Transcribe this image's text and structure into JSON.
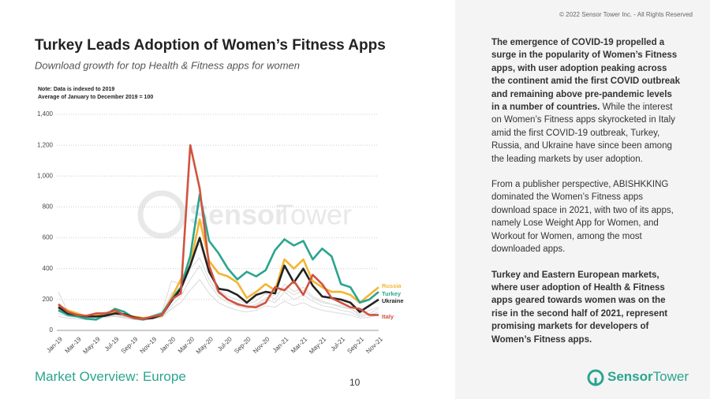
{
  "copyright": "© 2022 Sensor Tower Inc. - All Rights Reserved",
  "footer": "Market Overview: Europe",
  "page_number": "10",
  "logo": [
    "Sensor",
    "Tower"
  ],
  "paragraphs": [
    [
      {
        "text": "The emergence of COVID-19 propelled a surge in the popularity of Women’s Fitness apps, with user adoption peaking across the continent amid the first COVID outbreak and remaining above pre-pandemic levels in a number of countries.",
        "bold": true
      },
      {
        "text": " While the interest on Women’s Fitness apps skyrocketed in Italy amid the first COVID-19 outbreak, Turkey, Russia, and Ukraine have since been among the leading markets by user adoption.",
        "bold": false
      }
    ],
    [
      {
        "text": "From a publisher perspective, ABISHKKING dominated the Women’s Fitness apps download space in 2021, with two of its apps, namely Lose Weight App for Women, and Workout for Women, among the most downloaded apps.",
        "bold": false
      }
    ],
    [
      {
        "text": "Turkey and Eastern European markets, where user adoption of Health & Fitness apps geared towards women was on the rise in the second half of 2021, represent promising markets for developers of Women’s Fitness apps.",
        "bold": true
      }
    ]
  ],
  "chart_data": {
    "type": "line",
    "title": "Turkey Leads Adoption of Women’s Fitness Apps",
    "subtitle": "Download growth for top Health & Fitness apps for women",
    "notes": [
      "Note: Data is indexed to 2019",
      "Average of January to December 2019 = 100"
    ],
    "categories": [
      "Jan-19",
      null,
      "Mar-19",
      null,
      "May-19",
      null,
      "Jul-19",
      null,
      "Sep-19",
      null,
      "Nov-19",
      null,
      "Jan-20",
      null,
      "Mar-20",
      null,
      "May-20",
      null,
      "Jul-20",
      null,
      "Sep-20",
      null,
      "Nov-20",
      null,
      "Jan-21",
      null,
      "Mar-21",
      null,
      "May-21",
      null,
      "Jul-21",
      null,
      "Sep-21",
      null,
      "Nov-21"
    ],
    "ylim": [
      0,
      1400
    ],
    "yticks": [
      0,
      200,
      400,
      600,
      800,
      {
        "value": 1000,
        "label": "1,000"
      },
      {
        "value": 1200,
        "label": "1,200"
      },
      {
        "value": 1400,
        "label": "1,400"
      }
    ],
    "grid": true,
    "other_series": [
      {
        "color": "#d9d9d9",
        "values": [
          250,
          120,
          100,
          90,
          100,
          95,
          100,
          95,
          80,
          70,
          100,
          120,
          320,
          300,
          500,
          560,
          380,
          260,
          220,
          200,
          170,
          190,
          240,
          200,
          300,
          250,
          280,
          220,
          190,
          170,
          160,
          140,
          110,
          130,
          150
        ]
      },
      {
        "color": "#d9d9d9",
        "values": [
          110,
          90,
          85,
          80,
          85,
          90,
          95,
          85,
          75,
          70,
          80,
          90,
          160,
          220,
          330,
          420,
          300,
          220,
          180,
          160,
          140,
          160,
          200,
          180,
          250,
          200,
          230,
          190,
          160,
          150,
          130,
          120,
          90,
          100,
          120
        ]
      },
      {
        "color": "#d9d9d9",
        "values": [
          90,
          80,
          75,
          70,
          80,
          85,
          90,
          80,
          70,
          65,
          75,
          85,
          140,
          180,
          260,
          330,
          240,
          180,
          150,
          130,
          120,
          130,
          160,
          150,
          190,
          160,
          180,
          150,
          130,
          120,
          110,
          100,
          80,
          85,
          100
        ]
      },
      {
        "color": "#d9d9d9",
        "values": [
          140,
          100,
          95,
          100,
          110,
          120,
          100,
          90,
          85,
          80,
          90,
          110,
          240,
          260,
          400,
          470,
          330,
          240,
          200,
          180,
          150,
          170,
          210,
          230,
          270,
          230,
          260,
          210,
          180,
          170,
          150,
          140,
          100,
          110,
          140
        ]
      }
    ],
    "series": [
      {
        "name": "Russia",
        "color": "#f2b632",
        "values": [
          160,
          130,
          110,
          90,
          100,
          110,
          120,
          100,
          90,
          80,
          85,
          95,
          210,
          330,
          420,
          720,
          450,
          370,
          350,
          310,
          210,
          250,
          300,
          260,
          460,
          400,
          460,
          320,
          280,
          250,
          250,
          230,
          180,
          230,
          280
        ]
      },
      {
        "name": "Turkey",
        "color": "#2aa58f",
        "values": [
          130,
          100,
          90,
          75,
          70,
          100,
          140,
          120,
          80,
          70,
          90,
          110,
          200,
          280,
          480,
          880,
          580,
          500,
          400,
          330,
          380,
          350,
          390,
          520,
          590,
          550,
          580,
          460,
          530,
          480,
          300,
          280,
          180,
          200,
          250
        ]
      },
      {
        "name": "Ukraine",
        "color": "#222222",
        "values": [
          150,
          110,
          100,
          90,
          90,
          95,
          110,
          105,
          85,
          75,
          80,
          100,
          190,
          270,
          420,
          600,
          380,
          270,
          260,
          230,
          180,
          230,
          250,
          240,
          420,
          310,
          400,
          290,
          220,
          210,
          200,
          180,
          120,
          160,
          200
        ]
      },
      {
        "name": "Italy",
        "color": "#d0533f",
        "values": [
          170,
          120,
          100,
          95,
          110,
          110,
          130,
          100,
          80,
          75,
          90,
          100,
          200,
          240,
          1200,
          920,
          420,
          250,
          200,
          170,
          155,
          150,
          180,
          280,
          260,
          320,
          230,
          360,
          300,
          210,
          180,
          150,
          140,
          100,
          100
        ]
      }
    ]
  }
}
